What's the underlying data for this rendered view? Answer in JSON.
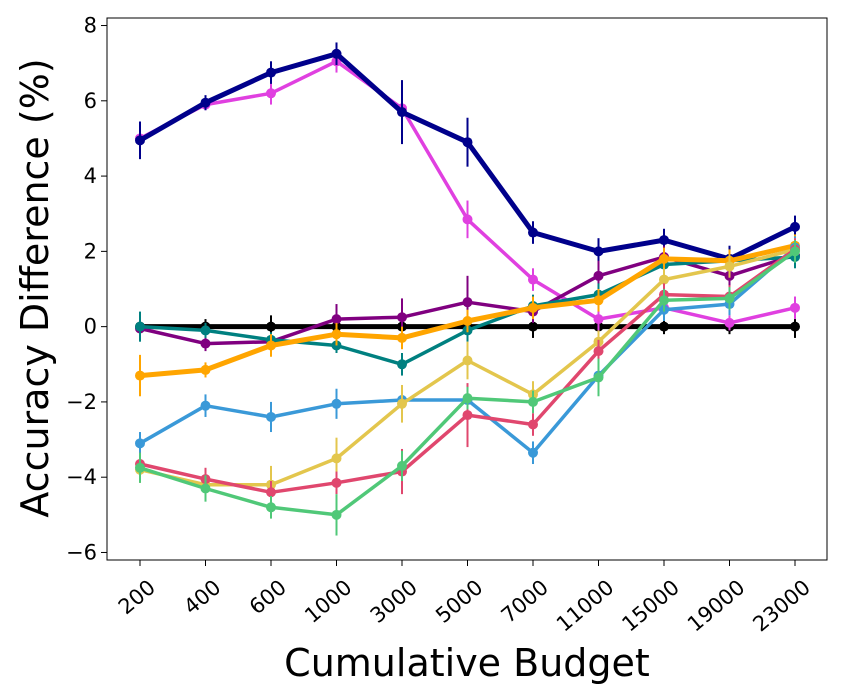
{
  "chart_data": {
    "type": "line",
    "title": "",
    "xlabel": "Cumulative Budget",
    "ylabel": "Accuracy Difference (%)",
    "categories": [
      "200",
      "400",
      "600",
      "1000",
      "3000",
      "5000",
      "7000",
      "11000",
      "15000",
      "19000",
      "23000"
    ],
    "ylim": [
      -6.2,
      8.2
    ],
    "yticks": [
      -6,
      -4,
      -2,
      0,
      2,
      4,
      6,
      8
    ],
    "ytick_labels": [
      "−6",
      "−4",
      "−2",
      "0",
      "2",
      "4",
      "6",
      "8"
    ],
    "grid": false,
    "legend": "none",
    "series": [
      {
        "name": "baseline",
        "color": "#000000",
        "emphasis": true,
        "values": [
          0,
          0,
          0,
          0,
          0,
          0,
          0,
          0,
          0,
          0,
          0
        ],
        "errors": [
          0.35,
          0.2,
          0.3,
          0.2,
          0.2,
          0.2,
          0.3,
          0.3,
          0.2,
          0.2,
          0.3
        ]
      },
      {
        "name": "magenta",
        "color": "#e040e0",
        "values": [
          5.0,
          5.9,
          6.2,
          7.05,
          5.8,
          2.85,
          1.25,
          0.2,
          0.5,
          0.1,
          0.5
        ],
        "errors": [
          0.15,
          0.15,
          0.3,
          0.3,
          0.3,
          0.5,
          0.3,
          0.3,
          0.2,
          0.2,
          0.3
        ]
      },
      {
        "name": "navy",
        "color": "#00008b",
        "emphasis": true,
        "values": [
          4.95,
          5.95,
          6.75,
          7.25,
          5.7,
          4.9,
          2.5,
          2.0,
          2.3,
          1.8,
          2.65
        ],
        "errors": [
          0.5,
          0.2,
          0.3,
          0.3,
          0.85,
          0.65,
          0.3,
          0.35,
          0.3,
          0.35,
          0.3
        ]
      },
      {
        "name": "purple",
        "color": "#800080",
        "values": [
          -0.05,
          -0.45,
          -0.4,
          0.2,
          0.25,
          0.65,
          0.4,
          1.35,
          1.85,
          1.35,
          1.9
        ],
        "errors": [
          0.2,
          0.2,
          0.2,
          0.4,
          0.5,
          0.7,
          0.3,
          0.4,
          0.3,
          0.3,
          0.3
        ]
      },
      {
        "name": "teal",
        "color": "#008080",
        "values": [
          0,
          -0.1,
          -0.35,
          -0.5,
          -1.0,
          -0.1,
          0.55,
          0.85,
          1.65,
          1.75,
          1.85
        ],
        "errors": [
          0.4,
          0.2,
          0.2,
          0.2,
          0.3,
          0.3,
          0.3,
          0.3,
          0.3,
          0.3,
          0.3
        ]
      },
      {
        "name": "orange",
        "color": "#ffa500",
        "emphasis": true,
        "values": [
          -1.3,
          -1.15,
          -0.5,
          -0.2,
          -0.3,
          0.15,
          0.5,
          0.7,
          1.8,
          1.75,
          2.15
        ],
        "errors": [
          0.55,
          0.2,
          0.3,
          0.3,
          0.3,
          0.3,
          0.3,
          0.3,
          0.3,
          0.3,
          0.3
        ]
      },
      {
        "name": "blue",
        "color": "#3a99d8",
        "values": [
          -3.1,
          -2.1,
          -2.4,
          -2.05,
          -1.95,
          -1.95,
          -3.35,
          -1.3,
          0.45,
          0.6,
          2.1
        ],
        "errors": [
          0.3,
          0.3,
          0.4,
          0.4,
          0.3,
          0.3,
          0.3,
          0.3,
          0.3,
          0.3,
          0.3
        ]
      },
      {
        "name": "yellow",
        "color": "#e3c64d",
        "values": [
          -3.8,
          -4.2,
          -4.2,
          -3.5,
          -2.05,
          -0.9,
          -1.8,
          -0.4,
          1.25,
          1.6,
          2.05
        ],
        "errors": [
          0.35,
          0.35,
          0.5,
          0.55,
          0.5,
          0.5,
          0.35,
          0.3,
          0.3,
          0.3,
          0.3
        ]
      },
      {
        "name": "crimson",
        "color": "#e0476e",
        "values": [
          -3.65,
          -4.05,
          -4.4,
          -4.15,
          -3.85,
          -2.35,
          -2.6,
          -0.65,
          0.85,
          0.8,
          2.05
        ],
        "errors": [
          0.3,
          0.3,
          0.3,
          0.3,
          0.6,
          0.85,
          0.3,
          0.3,
          0.3,
          0.3,
          0.3
        ]
      },
      {
        "name": "green",
        "color": "#50c878",
        "values": [
          -3.75,
          -4.3,
          -4.8,
          -5.0,
          -3.7,
          -1.9,
          -2.0,
          -1.35,
          0.7,
          0.75,
          2.0
        ],
        "errors": [
          0.4,
          0.35,
          0.3,
          0.55,
          0.4,
          0.3,
          0.3,
          0.5,
          0.3,
          0.3,
          0.3
        ]
      }
    ]
  }
}
